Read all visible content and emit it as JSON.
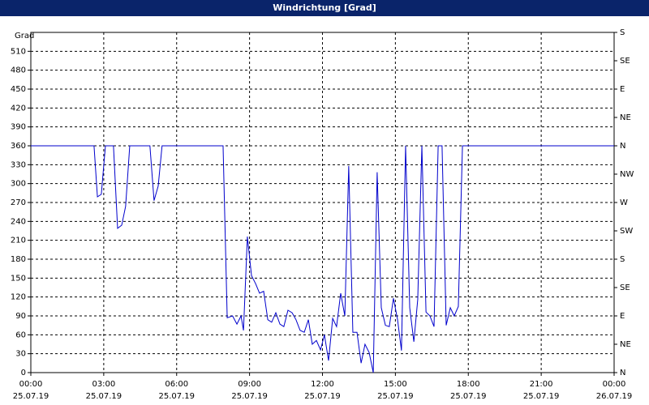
{
  "chart_data": {
    "type": "line",
    "title": "Windrichtung [Grad]",
    "y_label": "Grad",
    "x": [
      0,
      2.6,
      2.74,
      2.9,
      3.07,
      3.4,
      3.57,
      3.74,
      3.9,
      4.07,
      4.9,
      5.07,
      5.24,
      5.4,
      7.91,
      8.08,
      8.3,
      8.48,
      8.65,
      8.75,
      8.91,
      9.08,
      9.25,
      9.41,
      9.58,
      9.75,
      9.91,
      10.08,
      10.25,
      10.41,
      10.58,
      10.75,
      10.91,
      11.08,
      11.25,
      11.42,
      11.58,
      11.75,
      11.92,
      12.08,
      12.25,
      12.42,
      12.58,
      12.75,
      12.92,
      13.08,
      13.25,
      13.42,
      13.59,
      13.75,
      13.92,
      14.09,
      14.25,
      14.42,
      14.59,
      14.75,
      14.92,
      15.09,
      15.25,
      15.42,
      15.59,
      15.76,
      15.92,
      16.09,
      16.26,
      16.42,
      16.59,
      16.76,
      16.92,
      17.09,
      17.26,
      17.42,
      17.59,
      17.76,
      24
    ],
    "series": [
      {
        "color": "#0000cc",
        "values": [
          360,
          360,
          279,
          283,
          360,
          360,
          229,
          234,
          264,
          360,
          360,
          273,
          296,
          360,
          360,
          87,
          90,
          77,
          90,
          67,
          216,
          154,
          141,
          126,
          129,
          84,
          80,
          95,
          77,
          73,
          99,
          95,
          84,
          67,
          64,
          84,
          45,
          51,
          36,
          60,
          19,
          86,
          73,
          126,
          90,
          328,
          64,
          64,
          15,
          45,
          32,
          0,
          318,
          103,
          75,
          73,
          118,
          84,
          35,
          360,
          103,
          49,
          116,
          360,
          96,
          90,
          73,
          360,
          360,
          75,
          103,
          90,
          105,
          360,
          360
        ]
      }
    ],
    "xlim": [
      0,
      24
    ],
    "xticks": [
      {
        "value": 0,
        "label": "00:00",
        "date": "25.07.19"
      },
      {
        "value": 3,
        "label": "03:00",
        "date": "25.07.19"
      },
      {
        "value": 6,
        "label": "06:00",
        "date": "25.07.19"
      },
      {
        "value": 9,
        "label": "09:00",
        "date": "25.07.19"
      },
      {
        "value": 12,
        "label": "12:00",
        "date": "25.07.19"
      },
      {
        "value": 15,
        "label": "15:00",
        "date": "25.07.19"
      },
      {
        "value": 18,
        "label": "18:00",
        "date": "25.07.19"
      },
      {
        "value": 21,
        "label": "21:00",
        "date": "25.07.19"
      },
      {
        "value": 24,
        "label": "00:00",
        "date": "26.07.19"
      }
    ],
    "ylim": [
      0,
      540
    ],
    "yticks": [
      0,
      30,
      60,
      90,
      120,
      150,
      180,
      210,
      240,
      270,
      300,
      330,
      360,
      390,
      420,
      450,
      480,
      510
    ],
    "y2lim": [
      0,
      540
    ],
    "y2ticks": [
      {
        "value": 0,
        "label": "N"
      },
      {
        "value": 45,
        "label": "NE"
      },
      {
        "value": 90,
        "label": "E"
      },
      {
        "value": 135,
        "label": "SE"
      },
      {
        "value": 180,
        "label": "S"
      },
      {
        "value": 225,
        "label": "SW"
      },
      {
        "value": 270,
        "label": "W"
      },
      {
        "value": 315,
        "label": "NW"
      },
      {
        "value": 360,
        "label": "N"
      },
      {
        "value": 405,
        "label": "NE"
      },
      {
        "value": 450,
        "label": "E"
      },
      {
        "value": 495,
        "label": "SE"
      },
      {
        "value": 540,
        "label": "S"
      }
    ],
    "grid": true
  }
}
